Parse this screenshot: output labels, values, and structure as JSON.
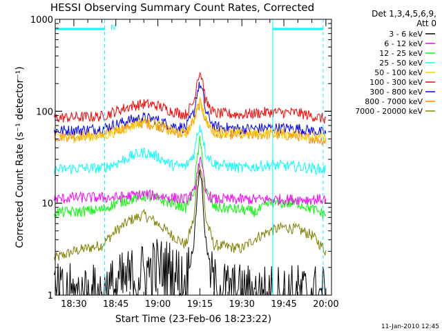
{
  "chart_data": {
    "type": "line",
    "title": "HESSI Observing Summary Count Rates, Corrected",
    "xlabel": "Start Time (23-Feb-06 18:23:22)",
    "ylabel": "Corrected Count Rate (s⁻¹ detector⁻¹)",
    "y_scale": "log",
    "ylim": [
      1,
      1000
    ],
    "xlim": [
      "18:23:22",
      "20:02:00"
    ],
    "y_ticks": [
      "1",
      "10",
      "100",
      "1000"
    ],
    "x_ticks": [
      "18:30",
      "18:45",
      "19:00",
      "19:15",
      "19:30",
      "19:45",
      "20:00"
    ],
    "legend_header": [
      "Det 1,3,4,5,6,9,",
      "Att 0"
    ],
    "timestamp": "11-Jan-2010 12:45",
    "region_marker_label": "N",
    "eclipse_bars": [
      [
        "18:23:22",
        "18:41:00"
      ],
      [
        "19:41:00",
        "19:59:00"
      ]
    ],
    "region_lines": [
      "18:41:00",
      "19:59:00"
    ],
    "series": [
      {
        "name": "3 - 6 keV",
        "color": "#000000",
        "t": [
          "18:23",
          "18:30",
          "18:40",
          "18:50",
          "19:00",
          "19:05",
          "19:10",
          "19:13",
          "19:14",
          "19:15",
          "19:16",
          "19:17",
          "19:20",
          "19:30",
          "19:40",
          "19:50",
          "20:00"
        ],
        "v": [
          1,
          1,
          1,
          1.5,
          2,
          1.8,
          1.3,
          4,
          12,
          25,
          12,
          4,
          1.2,
          1,
          1,
          1,
          1
        ]
      },
      {
        "name": "6 - 12 keV",
        "color": "#ff00ff",
        "t": [
          "18:23",
          "18:30",
          "18:40",
          "18:45",
          "18:50",
          "18:55",
          "19:00",
          "19:05",
          "19:10",
          "19:13",
          "19:14",
          "19:15",
          "19:16",
          "19:17",
          "19:20",
          "19:30",
          "19:40",
          "19:50",
          "20:00"
        ],
        "v": [
          11,
          11.5,
          11.5,
          11.5,
          12,
          12.5,
          12,
          11.5,
          11,
          13,
          22,
          31,
          22,
          13,
          11,
          11,
          11,
          11,
          11
        ]
      },
      {
        "name": "12 - 25 keV",
        "color": "#00ff00",
        "t": [
          "18:23",
          "18:30",
          "18:40",
          "18:45",
          "18:50",
          "18:55",
          "19:00",
          "19:05",
          "19:10",
          "19:13",
          "19:14",
          "19:15",
          "19:16",
          "19:17",
          "19:20",
          "19:30",
          "19:35",
          "19:40",
          "19:50",
          "20:00"
        ],
        "v": [
          8,
          8,
          8.5,
          10,
          11,
          12,
          11,
          10,
          9,
          14,
          30,
          48,
          30,
          14,
          9,
          8.5,
          8,
          10,
          10,
          7.5
        ]
      },
      {
        "name": "25 - 50 keV",
        "color": "#00ffff",
        "t": [
          "18:23",
          "18:30",
          "18:40",
          "18:45",
          "18:50",
          "18:55",
          "19:00",
          "19:05",
          "19:10",
          "19:13",
          "19:14",
          "19:15",
          "19:16",
          "19:17",
          "19:20",
          "19:30",
          "19:40",
          "19:50",
          "20:00"
        ],
        "v": [
          23,
          24,
          24,
          27,
          32,
          36,
          32,
          26,
          25,
          35,
          55,
          70,
          55,
          35,
          27,
          24,
          26,
          25,
          23
        ]
      },
      {
        "name": "50 - 100 keV",
        "color": "#ffcc00",
        "t": [
          "18:23",
          "18:30",
          "18:40",
          "18:45",
          "18:50",
          "18:55",
          "19:00",
          "19:05",
          "19:10",
          "19:13",
          "19:14",
          "19:15",
          "19:16",
          "19:17",
          "19:20",
          "19:30",
          "19:40",
          "19:50",
          "20:00"
        ],
        "v": [
          52,
          52,
          54,
          60,
          68,
          78,
          72,
          60,
          57,
          80,
          110,
          130,
          110,
          80,
          60,
          56,
          58,
          56,
          50
        ]
      },
      {
        "name": "100 - 300 keV",
        "color": "#ff0000",
        "t": [
          "18:23",
          "18:30",
          "18:40",
          "18:45",
          "18:50",
          "18:55",
          "19:00",
          "19:05",
          "19:10",
          "19:13",
          "19:14",
          "19:15",
          "19:16",
          "19:17",
          "19:20",
          "19:30",
          "19:40",
          "19:50",
          "20:00"
        ],
        "v": [
          85,
          86,
          88,
          100,
          113,
          120,
          115,
          100,
          92,
          130,
          220,
          270,
          220,
          130,
          95,
          92,
          98,
          96,
          82
        ]
      },
      {
        "name": "300 - 800 keV",
        "color": "#0000ff",
        "t": [
          "18:23",
          "18:30",
          "18:40",
          "18:45",
          "18:50",
          "18:55",
          "19:00",
          "19:05",
          "19:10",
          "19:13",
          "19:14",
          "19:15",
          "19:16",
          "19:17",
          "19:20",
          "19:30",
          "19:40",
          "19:50",
          "20:00"
        ],
        "v": [
          62,
          62,
          65,
          72,
          80,
          85,
          80,
          70,
          66,
          100,
          160,
          195,
          160,
          100,
          68,
          64,
          66,
          65,
          58
        ]
      },
      {
        "name": "800 - 7000 keV",
        "color": "#ff8000",
        "t": [
          "18:23",
          "18:30",
          "18:40",
          "18:45",
          "18:50",
          "18:55",
          "19:00",
          "19:05",
          "19:10",
          "19:13",
          "19:14",
          "19:15",
          "19:16",
          "19:17",
          "19:20",
          "19:30",
          "19:40",
          "19:50",
          "20:00"
        ],
        "v": [
          53,
          54,
          56,
          62,
          70,
          75,
          70,
          60,
          57,
          80,
          105,
          120,
          105,
          80,
          58,
          55,
          56,
          54,
          48
        ]
      },
      {
        "name": "7000 - 20000 keV",
        "color": "#808000",
        "t": [
          "18:23",
          "18:30",
          "18:40",
          "18:45",
          "18:50",
          "18:55",
          "19:00",
          "19:05",
          "19:10",
          "19:13",
          "19:14",
          "19:15",
          "19:16",
          "19:17",
          "19:20",
          "19:30",
          "19:35",
          "19:40",
          "19:45",
          "19:50",
          "19:55",
          "20:00"
        ],
        "v": [
          2.5,
          3,
          3.5,
          5,
          6.5,
          7.5,
          6,
          4.5,
          3.5,
          7,
          18,
          28,
          18,
          7,
          3.5,
          3.2,
          4.2,
          5,
          5.5,
          5.2,
          4.5,
          3
        ]
      }
    ]
  }
}
